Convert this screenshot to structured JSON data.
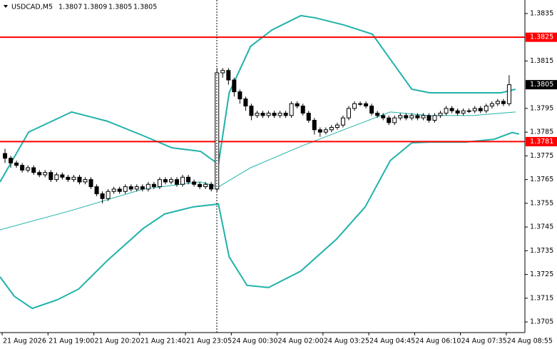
{
  "chart_data": {
    "type": "candlestick",
    "symbol": "USDCAD,M5",
    "header_values": [
      1.3807,
      1.3809,
      1.3805,
      1.3805
    ],
    "ylim": [
      1.37005,
      1.38407
    ],
    "yticks": [
      1.3835,
      1.3815,
      1.3795,
      1.3785,
      1.3775,
      1.3765,
      1.3755,
      1.3745,
      1.3735,
      1.3725,
      1.3715,
      1.3705
    ],
    "xlim": [
      -0.875,
      90.75
    ],
    "xticks": [
      {
        "value": 0,
        "label": "21 Aug 2026"
      },
      {
        "value": 8,
        "label": "21 Aug 19:00"
      },
      {
        "value": 16,
        "label": "21 Aug 20:20"
      },
      {
        "value": 24,
        "label": "21 Aug 21:40"
      },
      {
        "value": 32,
        "label": "21 Aug 23:05"
      },
      {
        "value": 40,
        "label": "24 Aug 00:30"
      },
      {
        "value": 48,
        "label": "24 Aug 02:00"
      },
      {
        "value": 56,
        "label": "24 Aug 03:25"
      },
      {
        "value": 64,
        "label": "24 Aug 04:45"
      },
      {
        "value": 72,
        "label": "24 Aug 06:10"
      },
      {
        "value": 80,
        "label": "24 Aug 07:35"
      },
      {
        "value": 88,
        "label": "24 Aug 08:55"
      }
    ],
    "up_color": "#ffffff",
    "down_color": "#000000",
    "ohlc": [
      [
        1.3776,
        1.3778,
        1.3772,
        1.3774
      ],
      [
        1.3774,
        1.3775,
        1.377,
        1.3772
      ],
      [
        1.3772,
        1.3773,
        1.377,
        1.3771
      ],
      [
        1.3771,
        1.3772,
        1.3768,
        1.3769
      ],
      [
        1.3769,
        1.3771,
        1.3768,
        1.377
      ],
      [
        1.377,
        1.3771,
        1.3767,
        1.3768
      ],
      [
        1.3768,
        1.3769,
        1.3766,
        1.3767
      ],
      [
        1.3767,
        1.3769,
        1.3766,
        1.3768
      ],
      [
        1.3768,
        1.3769,
        1.3764,
        1.3765
      ],
      [
        1.3765,
        1.3768,
        1.3764,
        1.3767
      ],
      [
        1.3767,
        1.3768,
        1.3765,
        1.3766
      ],
      [
        1.3766,
        1.3767,
        1.3764,
        1.3765
      ],
      [
        1.3765,
        1.3767,
        1.3764,
        1.3766
      ],
      [
        1.3766,
        1.3767,
        1.3763,
        1.3764
      ],
      [
        1.3764,
        1.3766,
        1.3763,
        1.3765
      ],
      [
        1.3765,
        1.3766,
        1.3761,
        1.3762
      ],
      [
        1.3762,
        1.3763,
        1.3758,
        1.3759
      ],
      [
        1.3759,
        1.376,
        1.3755,
        1.3757
      ],
      [
        1.3757,
        1.3761,
        1.3756,
        1.376
      ],
      [
        1.376,
        1.3762,
        1.3759,
        1.3761
      ],
      [
        1.3761,
        1.3762,
        1.3759,
        1.376
      ],
      [
        1.376,
        1.3763,
        1.3759,
        1.3762
      ],
      [
        1.3762,
        1.3763,
        1.376,
        1.3761
      ],
      [
        1.3761,
        1.3763,
        1.376,
        1.3762
      ],
      [
        1.3762,
        1.3763,
        1.376,
        1.3761
      ],
      [
        1.3761,
        1.3764,
        1.376,
        1.3763
      ],
      [
        1.3763,
        1.3764,
        1.3761,
        1.3762
      ],
      [
        1.3762,
        1.3766,
        1.3761,
        1.3765
      ],
      [
        1.3765,
        1.3766,
        1.3763,
        1.3764
      ],
      [
        1.3764,
        1.3766,
        1.3763,
        1.3765
      ],
      [
        1.3765,
        1.3766,
        1.3762,
        1.3763
      ],
      [
        1.3763,
        1.3767,
        1.3762,
        1.3766
      ],
      [
        1.3766,
        1.3767,
        1.3763,
        1.3764
      ],
      [
        1.3764,
        1.3765,
        1.3762,
        1.3763
      ],
      [
        1.3763,
        1.3764,
        1.3761,
        1.3762
      ],
      [
        1.3762,
        1.3764,
        1.3761,
        1.3763
      ],
      [
        1.3763,
        1.3764,
        1.376,
        1.3761
      ],
      [
        1.3761,
        1.3812,
        1.376,
        1.381
      ],
      [
        1.381,
        1.3812,
        1.3808,
        1.3811
      ],
      [
        1.3811,
        1.3812,
        1.3805,
        1.3807
      ],
      [
        1.3807,
        1.3808,
        1.38,
        1.3802
      ],
      [
        1.3802,
        1.3803,
        1.3797,
        1.3799
      ],
      [
        1.3799,
        1.38,
        1.3794,
        1.3796
      ],
      [
        1.3796,
        1.3797,
        1.379,
        1.3792
      ],
      [
        1.3792,
        1.3794,
        1.3791,
        1.3793
      ],
      [
        1.3793,
        1.3794,
        1.3791,
        1.3792
      ],
      [
        1.3792,
        1.3794,
        1.3791,
        1.3793
      ],
      [
        1.3793,
        1.3794,
        1.3791,
        1.3792
      ],
      [
        1.3792,
        1.3794,
        1.3791,
        1.3793
      ],
      [
        1.3793,
        1.3794,
        1.3791,
        1.3792
      ],
      [
        1.3792,
        1.3798,
        1.3791,
        1.3797
      ],
      [
        1.3797,
        1.3798,
        1.3795,
        1.3796
      ],
      [
        1.3796,
        1.3797,
        1.3792,
        1.3793
      ],
      [
        1.3793,
        1.3794,
        1.3789,
        1.379
      ],
      [
        1.379,
        1.3791,
        1.3784,
        1.3786
      ],
      [
        1.3786,
        1.3787,
        1.3783,
        1.3785
      ],
      [
        1.3785,
        1.3787,
        1.3784,
        1.3786
      ],
      [
        1.3786,
        1.3788,
        1.3785,
        1.3787
      ],
      [
        1.3787,
        1.3789,
        1.3786,
        1.3788
      ],
      [
        1.3788,
        1.3792,
        1.3787,
        1.3791
      ],
      [
        1.3791,
        1.3796,
        1.379,
        1.3795
      ],
      [
        1.3795,
        1.3798,
        1.3794,
        1.3797
      ],
      [
        1.3797,
        1.3798,
        1.3796,
        1.3797
      ],
      [
        1.3797,
        1.3798,
        1.3795,
        1.3796
      ],
      [
        1.3796,
        1.3797,
        1.3792,
        1.3793
      ],
      [
        1.3793,
        1.3794,
        1.3791,
        1.3792
      ],
      [
        1.3792,
        1.3793,
        1.379,
        1.3791
      ],
      [
        1.3791,
        1.3792,
        1.3788,
        1.3789
      ],
      [
        1.3789,
        1.3792,
        1.3788,
        1.3791
      ],
      [
        1.3791,
        1.3793,
        1.379,
        1.3792
      ],
      [
        1.3792,
        1.3793,
        1.379,
        1.3791
      ],
      [
        1.3791,
        1.3793,
        1.379,
        1.3792
      ],
      [
        1.3792,
        1.3793,
        1.379,
        1.3791
      ],
      [
        1.3791,
        1.3793,
        1.379,
        1.3792
      ],
      [
        1.3792,
        1.3793,
        1.3789,
        1.379
      ],
      [
        1.379,
        1.3793,
        1.3789,
        1.3792
      ],
      [
        1.3792,
        1.3794,
        1.3791,
        1.3793
      ],
      [
        1.3793,
        1.3796,
        1.3792,
        1.3795
      ],
      [
        1.3795,
        1.3796,
        1.3793,
        1.3794
      ],
      [
        1.3794,
        1.3795,
        1.3792,
        1.3793
      ],
      [
        1.3793,
        1.3795,
        1.3792,
        1.3794
      ],
      [
        1.3794,
        1.3795,
        1.3793,
        1.3794
      ],
      [
        1.3794,
        1.3796,
        1.3793,
        1.3795
      ],
      [
        1.3795,
        1.3796,
        1.3793,
        1.3794
      ],
      [
        1.3794,
        1.3797,
        1.3793,
        1.3796
      ],
      [
        1.3796,
        1.3798,
        1.3795,
        1.3797
      ],
      [
        1.3797,
        1.3799,
        1.3796,
        1.3798
      ],
      [
        1.3798,
        1.3799,
        1.3796,
        1.3797
      ],
      [
        1.3797,
        1.3809,
        1.3796,
        1.3805
      ]
    ],
    "lines": [
      {
        "color": "#20b2aa",
        "width": 2,
        "x": [
          -0.875,
          4.125,
          11.625,
          17.875,
          24.125,
          29.125,
          34.125,
          37.25,
          39.125,
          42.875,
          46.625,
          51.625,
          54.125,
          59.125,
          64.125,
          67.875,
          71,
          74.125,
          80.375,
          86.625,
          89.125
        ],
        "values": [
          1.3764,
          1.3785,
          1.37935,
          1.37896,
          1.37835,
          1.37784,
          1.37769,
          1.37715,
          1.38016,
          1.38212,
          1.38281,
          1.38341,
          1.38332,
          1.38302,
          1.38263,
          1.38136,
          1.38031,
          1.38016,
          1.38016,
          1.38016,
          1.38031
        ]
      },
      {
        "color": "#20b2aa",
        "width": 2,
        "x": [
          -0.875,
          1.625,
          4.75,
          9.125,
          12.875,
          17.875,
          24.125,
          27.875,
          32.875,
          37.25,
          39.125,
          42.25,
          46,
          51.625,
          57.875,
          62.875,
          67.25,
          71,
          74.125,
          80.375,
          85.375,
          88.5,
          89.75
        ],
        "values": [
          1.3724,
          1.37158,
          1.37107,
          1.37143,
          1.37189,
          1.37309,
          1.37444,
          1.37505,
          1.37535,
          1.37547,
          1.37324,
          1.37204,
          1.37195,
          1.37264,
          1.37399,
          1.37535,
          1.3773,
          1.37805,
          1.37808,
          1.37808,
          1.3782,
          1.37848,
          1.37842
        ]
      },
      {
        "color": "#20b2aa",
        "width": 1,
        "x": [
          -0.875,
          11.625,
          24.125,
          34.125,
          37.25,
          42.875,
          51.625,
          59.125,
          67.25,
          74.125,
          81.625,
          89.125
        ],
        "values": [
          1.37438,
          1.3752,
          1.3761,
          1.3764,
          1.37619,
          1.377,
          1.3779,
          1.3786,
          1.37935,
          1.3792,
          1.3792,
          1.37935
        ]
      }
    ],
    "levels": [
      {
        "value": 1.3825,
        "color": "#ff0000"
      },
      {
        "value": 1.3781,
        "color": "#ff0000"
      }
    ],
    "bid": 1.3805
  }
}
